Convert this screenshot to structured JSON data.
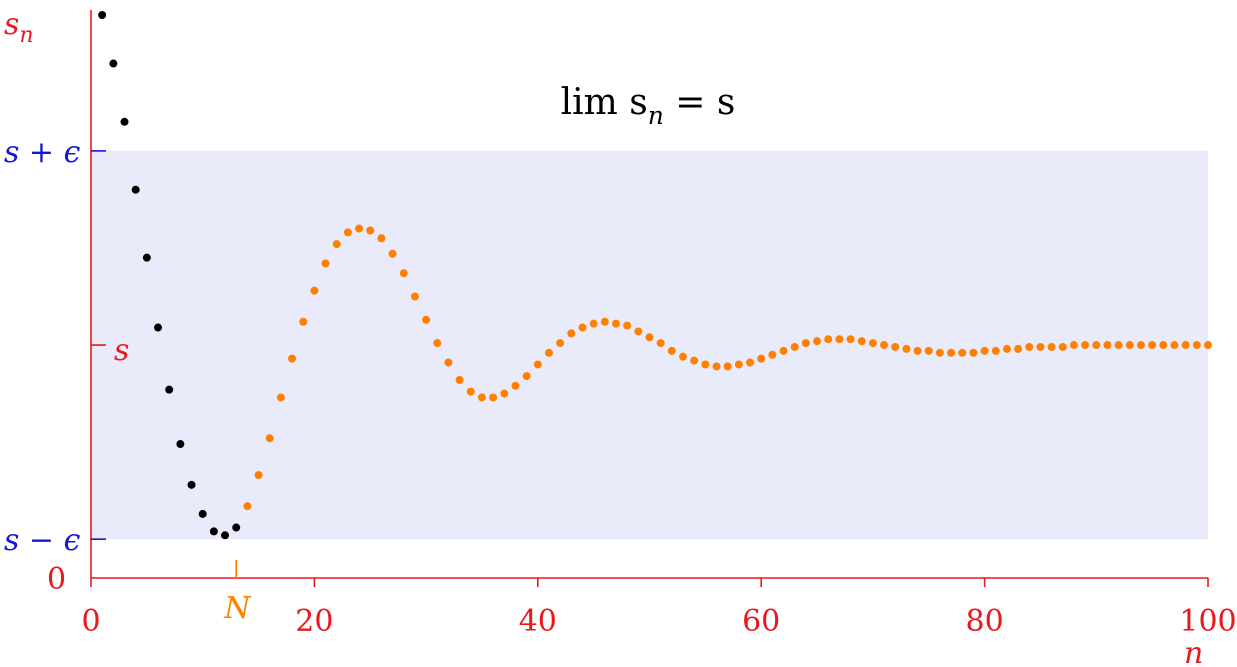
{
  "chart_data": {
    "type": "scatter",
    "title": "lim s",
    "title_sub": "n",
    "title_rhs": " = s",
    "xlabel": "n",
    "ylabel": "s",
    "ylabel_sub": "n",
    "xlim": [
      0,
      100
    ],
    "ylim": [
      0,
      2.9
    ],
    "grid": false,
    "s_value": 1.2,
    "epsilon": 1.0,
    "band": {
      "lower_label": "s − ϵ",
      "upper_label": "s + ϵ",
      "center_label": "s",
      "color": "#e9eafa"
    },
    "y_zero_label": "0",
    "x_ticks": [
      0,
      20,
      40,
      60,
      80,
      100
    ],
    "x_tick_labels": [
      "0",
      "20",
      "40",
      "60",
      "80",
      "100"
    ],
    "N_marker": {
      "label": "N",
      "x": 13
    },
    "colors": {
      "axis": "#e8191d",
      "band_labels": "#1515d8",
      "before_N": "#000000",
      "after_N": "#ff8000"
    },
    "series": [
      {
        "color": "#000000",
        "x": [
          1,
          2,
          3,
          4,
          5,
          6,
          7,
          8,
          9,
          10,
          11,
          12,
          13
        ],
        "y": [
          2.9,
          2.65,
          2.35,
          2.0,
          1.65,
          1.29,
          0.97,
          0.69,
          0.48,
          0.33,
          0.24,
          0.22,
          0.26
        ]
      },
      {
        "color": "#ff8000",
        "x": [
          14,
          15,
          16,
          17,
          18,
          19,
          20,
          21,
          22,
          23,
          24,
          25,
          26,
          27,
          28,
          29,
          30,
          31,
          32,
          33,
          34,
          35,
          36,
          37,
          38,
          39,
          40,
          41,
          42,
          43,
          44,
          45,
          46,
          47,
          48,
          49,
          50,
          51,
          52,
          53,
          54,
          55,
          56,
          57,
          58,
          59,
          60,
          61,
          62,
          63,
          64,
          65,
          66,
          67,
          68,
          69,
          70,
          71,
          72,
          73,
          74,
          75,
          76,
          77,
          78,
          79,
          80,
          81,
          82,
          83,
          84,
          85,
          86,
          87,
          88,
          89,
          90,
          91,
          92,
          93,
          94,
          95,
          96,
          97,
          98,
          99,
          100
        ],
        "y": [
          0.37,
          0.53,
          0.72,
          0.93,
          1.13,
          1.32,
          1.48,
          1.62,
          1.72,
          1.78,
          1.8,
          1.79,
          1.75,
          1.67,
          1.57,
          1.45,
          1.33,
          1.21,
          1.11,
          1.02,
          0.96,
          0.93,
          0.93,
          0.95,
          0.99,
          1.04,
          1.1,
          1.16,
          1.21,
          1.26,
          1.29,
          1.31,
          1.32,
          1.31,
          1.3,
          1.27,
          1.24,
          1.21,
          1.17,
          1.14,
          1.12,
          1.1,
          1.09,
          1.09,
          1.1,
          1.11,
          1.13,
          1.15,
          1.17,
          1.19,
          1.21,
          1.22,
          1.23,
          1.23,
          1.23,
          1.22,
          1.21,
          1.2,
          1.19,
          1.18,
          1.17,
          1.17,
          1.16,
          1.16,
          1.16,
          1.16,
          1.17,
          1.17,
          1.18,
          1.18,
          1.19,
          1.19,
          1.19,
          1.19,
          1.2,
          1.2,
          1.2,
          1.2,
          1.2,
          1.2,
          1.2,
          1.2,
          1.2,
          1.2,
          1.2,
          1.2,
          1.2
        ]
      }
    ]
  }
}
